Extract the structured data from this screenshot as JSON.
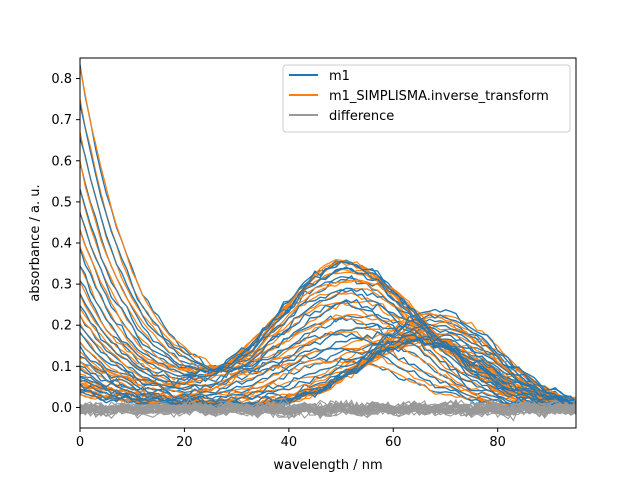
{
  "chart_data": {
    "type": "line",
    "xlabel": "wavelength / nm",
    "ylabel": "absorbance / a. u.",
    "xlim": [
      0,
      95
    ],
    "ylim": [
      -0.05,
      0.85
    ],
    "x_ticks": [
      0,
      20,
      40,
      60,
      80
    ],
    "y_ticks": [
      0.0,
      0.1,
      0.2,
      0.3,
      0.4,
      0.5,
      0.6,
      0.7,
      0.8
    ],
    "grid": false,
    "legend_position": "upper right",
    "x_points": 96,
    "spectra_count": 30,
    "components": {
      "c1": {
        "shape": "exponential-decay",
        "amplitude": 0.83,
        "decay_nm": 11
      },
      "c2": {
        "shape": "gaussian",
        "center_nm": 50,
        "width_nm": 13,
        "amplitude": 0.335
      },
      "c3": {
        "shape": "gaussian",
        "center_nm": 68,
        "width_nm": 12,
        "amplitude": 0.245
      }
    },
    "series": [
      {
        "name": "m1",
        "color": "#1f77b4"
      },
      {
        "name": "m1_SIMPLISMA.inverse_transform",
        "color": "#ff7f0e"
      },
      {
        "name": "difference",
        "color": "#999999"
      }
    ]
  }
}
